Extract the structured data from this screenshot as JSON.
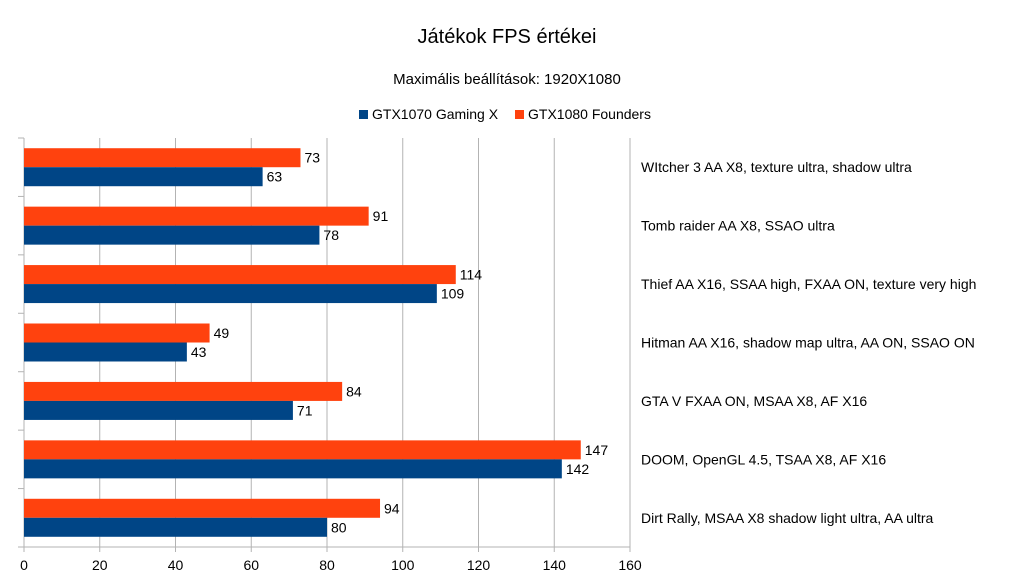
{
  "chart_data": {
    "type": "bar",
    "orientation": "horizontal",
    "title": "Játékok FPS értékei",
    "subtitle": "Maximális beállítások: 1920X1080",
    "legend_position": "top",
    "grid": true,
    "xlim": [
      0,
      160
    ],
    "xticks": [
      0,
      20,
      40,
      60,
      80,
      100,
      120,
      140,
      160
    ],
    "categories": [
      "WItcher 3 AA X8, texture ultra, shadow ultra",
      "Tomb raider AA X8, SSAO ultra",
      "Thief AA X16, SSAA high, FXAA ON, texture very high",
      "Hitman AA X16, shadow map ultra, AA ON, SSAO ON",
      "GTA V FXAA ON, MSAA X8, AF X16",
      "DOOM, OpenGL 4.5, TSAA X8, AF X16",
      "Dirt Rally, MSAA X8 shadow light ultra, AA ultra"
    ],
    "series": [
      {
        "name": "GTX1070 Gaming X",
        "color": "#004586",
        "values": [
          63,
          78,
          109,
          43,
          71,
          142,
          80
        ]
      },
      {
        "name": "GTX1080 Founders",
        "color": "#ff420e",
        "values": [
          73,
          91,
          114,
          49,
          84,
          147,
          94
        ]
      }
    ]
  }
}
